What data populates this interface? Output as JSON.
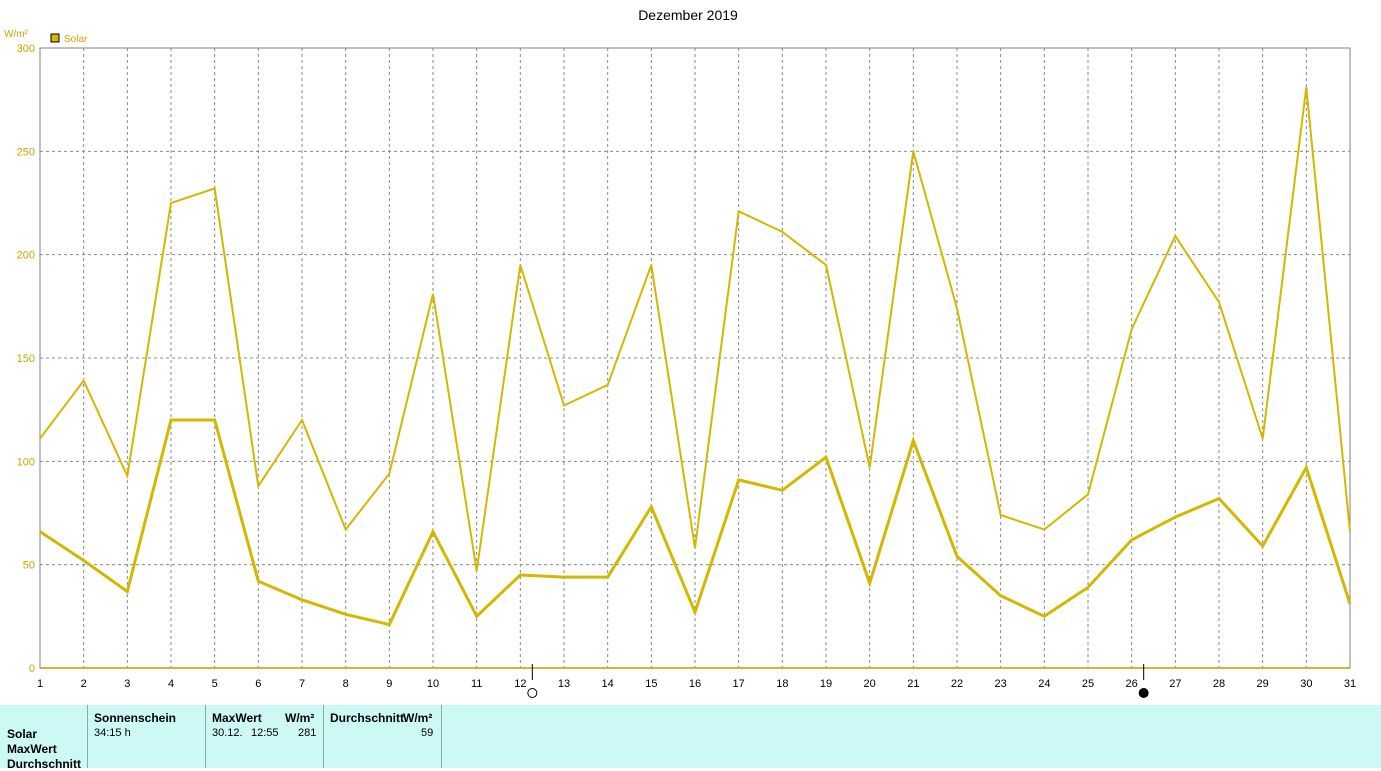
{
  "chart_data": {
    "type": "line",
    "title": "Dezember 2019",
    "ylabel": "W/m²",
    "xlabel": "",
    "x": [
      1,
      2,
      3,
      4,
      5,
      6,
      7,
      8,
      9,
      10,
      11,
      12,
      13,
      14,
      15,
      16,
      17,
      18,
      19,
      20,
      21,
      22,
      23,
      24,
      25,
      26,
      27,
      28,
      29,
      30,
      31
    ],
    "ylim": [
      0,
      300
    ],
    "yticks": [
      0,
      50,
      100,
      150,
      200,
      250,
      300
    ],
    "grid": true,
    "legend": {
      "label": "Solar",
      "position": "top-left"
    },
    "series": [
      {
        "name": "Solar",
        "role": "max",
        "color": "#d4b800",
        "values": [
          111,
          139,
          93,
          225,
          232,
          88,
          120,
          67,
          94,
          181,
          47,
          195,
          127,
          137,
          195,
          58,
          221,
          211,
          195,
          97,
          250,
          174,
          74,
          67,
          84,
          164,
          209,
          177,
          111,
          281,
          66
        ]
      },
      {
        "name": "Solar",
        "role": "average",
        "color": "#d4b800",
        "values": [
          66,
          52,
          37,
          120,
          120,
          42,
          33,
          26,
          21,
          66,
          25,
          45,
          44,
          44,
          78,
          27,
          91,
          86,
          102,
          41,
          110,
          54,
          35,
          25,
          39,
          62,
          73,
          82,
          59,
          97,
          31
        ]
      }
    ],
    "moon_markers": [
      {
        "day": 12,
        "phase": "full-moon"
      },
      {
        "day": 26,
        "phase": "new-moon"
      }
    ]
  },
  "table": {
    "row_labels": [
      "Solar",
      "MaxWert",
      "Durchschnitt"
    ],
    "columns": [
      {
        "header": "Sonnenschein",
        "value": "34:15 h"
      },
      {
        "header": "MaxWert",
        "unit": "W/m²",
        "date": "30.12.",
        "time": "12:55",
        "value": "281"
      },
      {
        "header": "Durchschnitt",
        "unit": "W/m²",
        "value": "59"
      }
    ]
  }
}
